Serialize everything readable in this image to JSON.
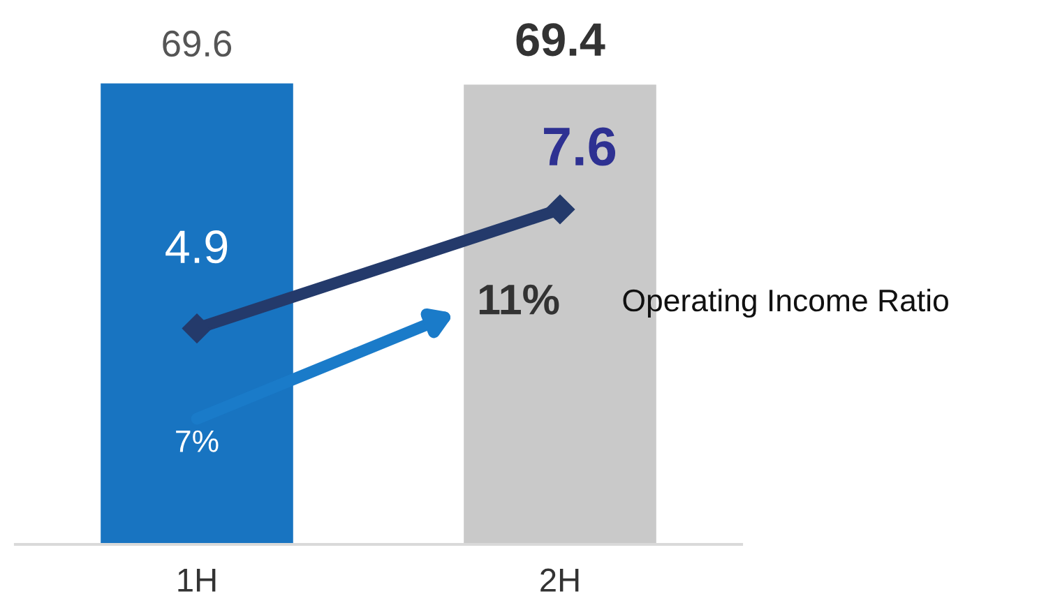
{
  "chart_data": {
    "type": "bar",
    "categories": [
      "1H",
      "2H"
    ],
    "tick_labels": "x",
    "legend": false,
    "grid": false,
    "annotations": [
      "7%",
      "11%",
      "Operating Income Ratio"
    ],
    "series": [
      {
        "colors": [
          "#1874c1",
          "#c9c9c9"
        ],
        "values": [
          69.6,
          69.4
        ],
        "data_labels": true
      },
      {
        "type": "line",
        "axis": "y2",
        "color": "#243a6b",
        "marker": "diamond",
        "values": [
          4.9,
          7.6
        ],
        "data_labels": true
      }
    ]
  }
}
